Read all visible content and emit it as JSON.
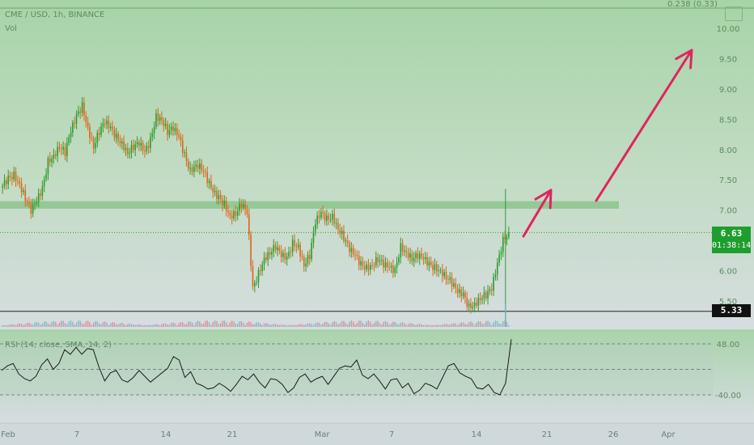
{
  "header": {
    "symbol": "CME / USD, 1h, BINANCE",
    "volume_label": "Vol",
    "rsi_label": "RSI (14, close, SMA, 14, 2)",
    "top_right": "0.238 (0.33)"
  },
  "badges": {
    "last_price": "6.63",
    "countdown": "01:38:14",
    "support_price": "5.33"
  },
  "colors": {
    "bull": "#2e9e2e",
    "bear": "#d96a1c",
    "volume_up": "#6db3b5",
    "volume_down": "#e07a82",
    "rsi_line": "#1a1a1a",
    "arrow": "#e0245e",
    "resistance_zone": "#8cc48c",
    "support_line": "#444444",
    "last_price_line": "#2e9e2e"
  },
  "chart_data": {
    "type": "candlestick",
    "interval": "1h",
    "price_axis": {
      "ticks": [
        "10.00",
        "9.50",
        "9.00",
        "8.50",
        "8.00",
        "7.50",
        "7.00",
        "6.50",
        "6.00",
        "5.50"
      ],
      "ylim": [
        5.3,
        10.1
      ]
    },
    "time_axis": {
      "ticks": [
        "Feb",
        "7",
        "14",
        "21",
        "Mar",
        "7",
        "14",
        "21",
        "26",
        "Apr"
      ]
    },
    "last_price": 6.63,
    "support_level": 5.33,
    "resistance_zone": [
      7.05,
      7.12
    ],
    "close_path": [
      7.4,
      7.52,
      7.58,
      7.43,
      7.2,
      7.0,
      7.15,
      7.35,
      7.8,
      7.9,
      8.05,
      7.95,
      8.3,
      8.55,
      8.72,
      8.35,
      8.05,
      8.3,
      8.45,
      8.35,
      8.2,
      8.1,
      7.95,
      8.05,
      8.1,
      7.95,
      8.15,
      8.55,
      8.5,
      8.3,
      8.35,
      8.2,
      7.9,
      7.65,
      7.75,
      7.7,
      7.5,
      7.3,
      7.2,
      7.1,
      6.9,
      6.95,
      7.1,
      6.95,
      5.7,
      5.95,
      6.2,
      6.3,
      6.4,
      6.25,
      6.2,
      6.45,
      6.4,
      6.1,
      6.25,
      6.8,
      6.95,
      6.85,
      6.9,
      6.7,
      6.55,
      6.35,
      6.25,
      6.1,
      6.05,
      6.1,
      6.2,
      6.1,
      6.05,
      6.0,
      6.4,
      6.3,
      6.2,
      6.25,
      6.2,
      6.1,
      6.05,
      6.0,
      5.9,
      5.8,
      5.65,
      5.6,
      5.4,
      5.45,
      5.55,
      5.6,
      5.7,
      6.1,
      6.5,
      6.63
    ],
    "rsi": {
      "ticks": [
        "48.00",
        "-40.00"
      ],
      "ylim": [
        -70,
        70
      ],
      "upper_band": 48,
      "middle_band": 4,
      "lower_band": -40,
      "values": [
        2,
        10,
        14,
        -4,
        -12,
        -16,
        -8,
        12,
        22,
        4,
        14,
        38,
        30,
        42,
        30,
        40,
        38,
        8,
        -16,
        -2,
        2,
        -14,
        -18,
        -10,
        2,
        -8,
        -18,
        -10,
        -2,
        6,
        26,
        20,
        -10,
        0,
        -20,
        -24,
        -30,
        -28,
        -20,
        -26,
        -34,
        -22,
        -8,
        -14,
        -4,
        -18,
        -28,
        -12,
        -14,
        -22,
        -36,
        -28,
        -10,
        -4,
        -18,
        -12,
        -8,
        -22,
        -8,
        6,
        10,
        8,
        20,
        -6,
        -12,
        -4,
        -16,
        -30,
        -14,
        -12,
        -28,
        -20,
        -38,
        -32,
        -20,
        -24,
        -30,
        -10,
        10,
        14,
        -2,
        -8,
        -12,
        -28,
        -30,
        -22,
        -36,
        -40,
        -20,
        56
      ]
    }
  }
}
